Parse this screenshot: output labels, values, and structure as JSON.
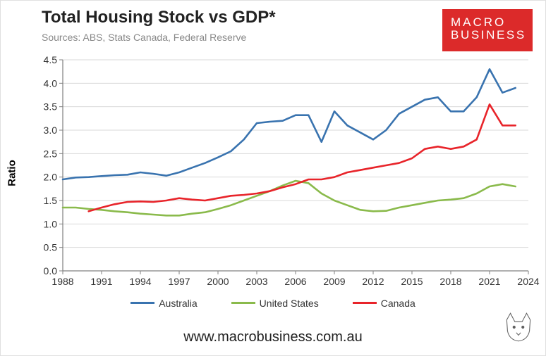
{
  "title": "Total Housing Stock vs GDP*",
  "subtitle": "Sources: ABS, Stats Canada, Federal Reserve",
  "ylabel": "Ratio",
  "caption": "www.macrobusiness.com.au",
  "logo": {
    "line1": "MACRO",
    "line2": "BUSINESS",
    "bg": "#dc2a2a",
    "fg": "#ffffff"
  },
  "chart": {
    "type": "line",
    "background_color": "#ffffff",
    "grid_color": "#d9d9d9",
    "axis_color": "#808080",
    "tick_font_size": 14,
    "line_width": 2.6,
    "x": {
      "min": 1988,
      "max": 2024,
      "ticks": [
        1988,
        1991,
        1994,
        1997,
        2000,
        2003,
        2006,
        2009,
        2012,
        2015,
        2018,
        2021,
        2024
      ]
    },
    "y": {
      "min": 0.0,
      "max": 4.5,
      "ticks": [
        0.0,
        0.5,
        1.0,
        1.5,
        2.0,
        2.5,
        3.0,
        3.5,
        4.0,
        4.5
      ]
    },
    "series": [
      {
        "name": "Australia",
        "color": "#3973af",
        "data": [
          [
            1988,
            1.95
          ],
          [
            1989,
            1.99
          ],
          [
            1990,
            2.0
          ],
          [
            1991,
            2.02
          ],
          [
            1992,
            2.04
          ],
          [
            1993,
            2.05
          ],
          [
            1994,
            2.1
          ],
          [
            1995,
            2.07
          ],
          [
            1996,
            2.03
          ],
          [
            1997,
            2.1
          ],
          [
            1998,
            2.2
          ],
          [
            1999,
            2.3
          ],
          [
            2000,
            2.42
          ],
          [
            2001,
            2.55
          ],
          [
            2002,
            2.8
          ],
          [
            2003,
            3.15
          ],
          [
            2004,
            3.18
          ],
          [
            2005,
            3.2
          ],
          [
            2006,
            3.32
          ],
          [
            2007,
            3.32
          ],
          [
            2008,
            2.75
          ],
          [
            2009,
            3.4
          ],
          [
            2010,
            3.1
          ],
          [
            2011,
            2.95
          ],
          [
            2012,
            2.8
          ],
          [
            2013,
            3.0
          ],
          [
            2014,
            3.35
          ],
          [
            2015,
            3.5
          ],
          [
            2016,
            3.65
          ],
          [
            2017,
            3.7
          ],
          [
            2018,
            3.4
          ],
          [
            2019,
            3.4
          ],
          [
            2020,
            3.7
          ],
          [
            2021,
            4.3
          ],
          [
            2022,
            3.8
          ],
          [
            2023,
            3.9
          ]
        ]
      },
      {
        "name": "United States",
        "color": "#8aba4b",
        "data": [
          [
            1988,
            1.35
          ],
          [
            1989,
            1.35
          ],
          [
            1990,
            1.32
          ],
          [
            1991,
            1.3
          ],
          [
            1992,
            1.27
          ],
          [
            1993,
            1.25
          ],
          [
            1994,
            1.22
          ],
          [
            1995,
            1.2
          ],
          [
            1996,
            1.18
          ],
          [
            1997,
            1.18
          ],
          [
            1998,
            1.22
          ],
          [
            1999,
            1.25
          ],
          [
            2000,
            1.32
          ],
          [
            2001,
            1.4
          ],
          [
            2002,
            1.5
          ],
          [
            2003,
            1.6
          ],
          [
            2004,
            1.7
          ],
          [
            2005,
            1.82
          ],
          [
            2006,
            1.92
          ],
          [
            2007,
            1.87
          ],
          [
            2008,
            1.65
          ],
          [
            2009,
            1.5
          ],
          [
            2010,
            1.4
          ],
          [
            2011,
            1.3
          ],
          [
            2012,
            1.27
          ],
          [
            2013,
            1.28
          ],
          [
            2014,
            1.35
          ],
          [
            2015,
            1.4
          ],
          [
            2016,
            1.45
          ],
          [
            2017,
            1.5
          ],
          [
            2018,
            1.52
          ],
          [
            2019,
            1.55
          ],
          [
            2020,
            1.65
          ],
          [
            2021,
            1.8
          ],
          [
            2022,
            1.85
          ],
          [
            2023,
            1.8
          ]
        ]
      },
      {
        "name": "Canada",
        "color": "#e8242a",
        "data": [
          [
            1990,
            1.27
          ],
          [
            1991,
            1.35
          ],
          [
            1992,
            1.42
          ],
          [
            1993,
            1.47
          ],
          [
            1994,
            1.48
          ],
          [
            1995,
            1.47
          ],
          [
            1996,
            1.5
          ],
          [
            1997,
            1.55
          ],
          [
            1998,
            1.52
          ],
          [
            1999,
            1.5
          ],
          [
            2000,
            1.55
          ],
          [
            2001,
            1.6
          ],
          [
            2002,
            1.62
          ],
          [
            2003,
            1.65
          ],
          [
            2004,
            1.7
          ],
          [
            2005,
            1.78
          ],
          [
            2006,
            1.85
          ],
          [
            2007,
            1.95
          ],
          [
            2008,
            1.95
          ],
          [
            2009,
            2.0
          ],
          [
            2010,
            2.1
          ],
          [
            2011,
            2.15
          ],
          [
            2012,
            2.2
          ],
          [
            2013,
            2.25
          ],
          [
            2014,
            2.3
          ],
          [
            2015,
            2.4
          ],
          [
            2016,
            2.6
          ],
          [
            2017,
            2.65
          ],
          [
            2018,
            2.6
          ],
          [
            2019,
            2.65
          ],
          [
            2020,
            2.8
          ],
          [
            2021,
            3.55
          ],
          [
            2022,
            3.1
          ],
          [
            2023,
            3.1
          ]
        ]
      }
    ]
  }
}
